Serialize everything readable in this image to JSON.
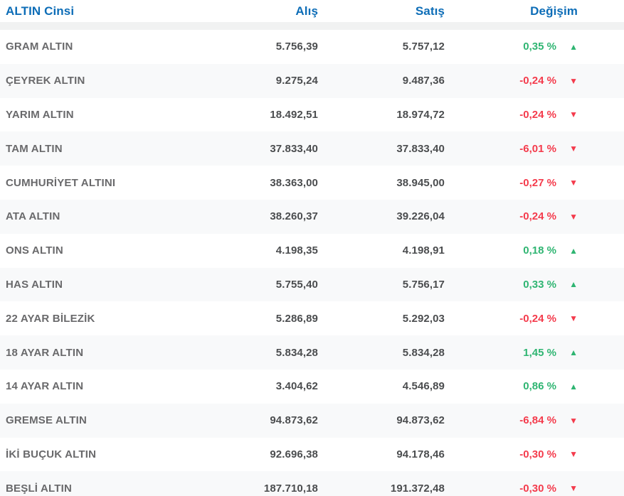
{
  "colors": {
    "header_blue": "#0d6db7",
    "up_green": "#2fb572",
    "down_red": "#f43b4c",
    "stripe_gray": "#f8f9fa",
    "separator_gray": "#f1f2f2",
    "name_text": "#69696b",
    "number_text": "#4b4d4f"
  },
  "icons": {
    "up": "▲",
    "down": "▼"
  },
  "table": {
    "columns": {
      "name": "ALTIN Cinsi",
      "buy": "Alış",
      "sell": "Satış",
      "change": "Değişim"
    },
    "rows": [
      {
        "name": "GRAM ALTIN",
        "buy": "5.756,39",
        "sell": "5.757,12",
        "change": "0,35 %",
        "direction": "up"
      },
      {
        "name": "ÇEYREK ALTIN",
        "buy": "9.275,24",
        "sell": "9.487,36",
        "change": "-0,24 %",
        "direction": "down"
      },
      {
        "name": "YARIM ALTIN",
        "buy": "18.492,51",
        "sell": "18.974,72",
        "change": "-0,24 %",
        "direction": "down"
      },
      {
        "name": "TAM ALTIN",
        "buy": "37.833,40",
        "sell": "37.833,40",
        "change": "-6,01 %",
        "direction": "down"
      },
      {
        "name": "CUMHURİYET ALTINI",
        "buy": "38.363,00",
        "sell": "38.945,00",
        "change": "-0,27 %",
        "direction": "down"
      },
      {
        "name": "ATA ALTIN",
        "buy": "38.260,37",
        "sell": "39.226,04",
        "change": "-0,24 %",
        "direction": "down"
      },
      {
        "name": "ONS ALTIN",
        "buy": "4.198,35",
        "sell": "4.198,91",
        "change": "0,18 %",
        "direction": "up"
      },
      {
        "name": "HAS ALTIN",
        "buy": "5.755,40",
        "sell": "5.756,17",
        "change": "0,33 %",
        "direction": "up"
      },
      {
        "name": "22 AYAR BİLEZİK",
        "buy": "5.286,89",
        "sell": "5.292,03",
        "change": "-0,24 %",
        "direction": "down"
      },
      {
        "name": "18 AYAR ALTIN",
        "buy": "5.834,28",
        "sell": "5.834,28",
        "change": "1,45 %",
        "direction": "up"
      },
      {
        "name": "14 AYAR ALTIN",
        "buy": "3.404,62",
        "sell": "4.546,89",
        "change": "0,86 %",
        "direction": "up"
      },
      {
        "name": "GREMSE ALTIN",
        "buy": "94.873,62",
        "sell": "94.873,62",
        "change": "-6,84 %",
        "direction": "down"
      },
      {
        "name": "İKİ BUÇUK ALTIN",
        "buy": "92.696,38",
        "sell": "94.178,46",
        "change": "-0,30 %",
        "direction": "down"
      },
      {
        "name": "BEŞLİ ALTIN",
        "buy": "187.710,18",
        "sell": "191.372,48",
        "change": "-0,30 %",
        "direction": "down"
      }
    ]
  },
  "chart_data": {
    "type": "table",
    "title": "ALTIN Cinsi",
    "columns": [
      "ALTIN Cinsi",
      "Alış",
      "Satış",
      "Değişim"
    ],
    "rows": [
      [
        "GRAM ALTIN",
        "5.756,39",
        "5.757,12",
        "0,35 %"
      ],
      [
        "ÇEYREK ALTIN",
        "9.275,24",
        "9.487,36",
        "-0,24 %"
      ],
      [
        "YARIM ALTIN",
        "18.492,51",
        "18.974,72",
        "-0,24 %"
      ],
      [
        "TAM ALTIN",
        "37.833,40",
        "37.833,40",
        "-6,01 %"
      ],
      [
        "CUMHURİYET ALTINI",
        "38.363,00",
        "38.945,00",
        "-0,27 %"
      ],
      [
        "ATA ALTIN",
        "38.260,37",
        "39.226,04",
        "-0,24 %"
      ],
      [
        "ONS ALTIN",
        "4.198,35",
        "4.198,91",
        "0,18 %"
      ],
      [
        "HAS ALTIN",
        "5.755,40",
        "5.756,17",
        "0,33 %"
      ],
      [
        "22 AYAR BİLEZİK",
        "5.286,89",
        "5.292,03",
        "-0,24 %"
      ],
      [
        "18 AYAR ALTIN",
        "5.834,28",
        "5.834,28",
        "1,45 %"
      ],
      [
        "14 AYAR ALTIN",
        "3.404,62",
        "4.546,89",
        "0,86 %"
      ],
      [
        "GREMSE ALTIN",
        "94.873,62",
        "94.873,62",
        "-6,84 %"
      ],
      [
        "İKİ BUÇUK ALTIN",
        "92.696,38",
        "94.178,46",
        "-0,30 %"
      ],
      [
        "BEŞLİ ALTIN",
        "187.710,18",
        "191.372,48",
        "-0,30 %"
      ]
    ]
  }
}
